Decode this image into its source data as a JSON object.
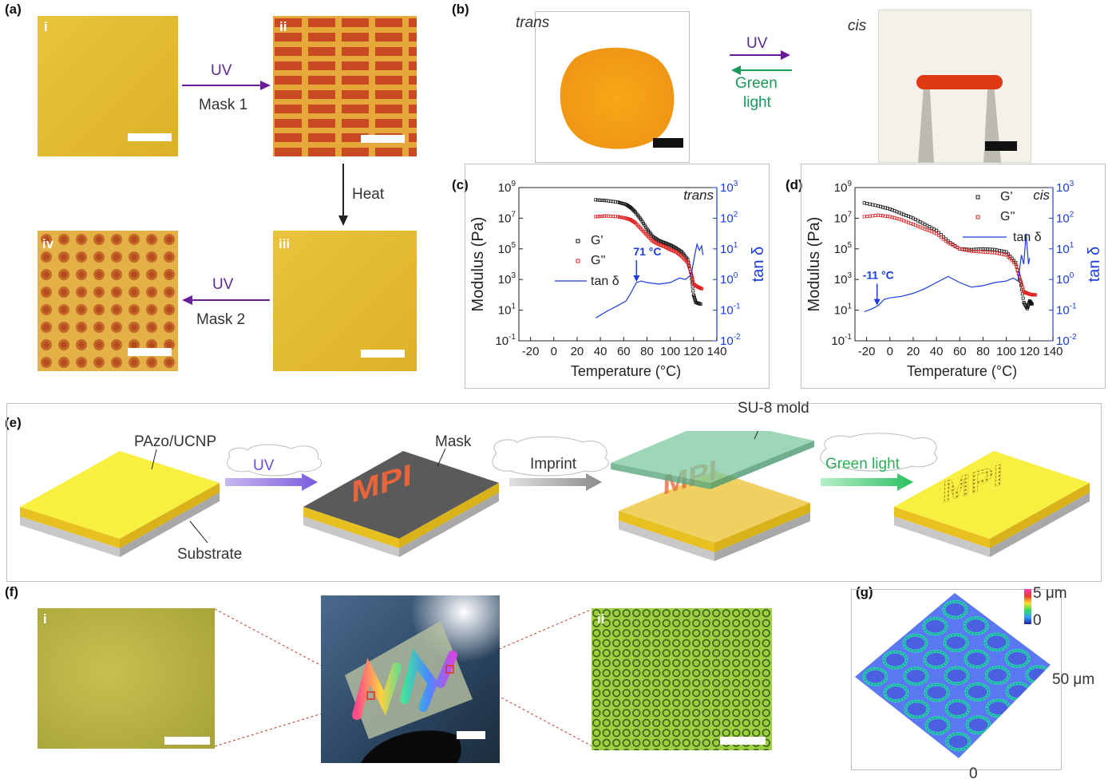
{
  "panel_a": {
    "label": "(a)",
    "tiles": [
      "i",
      "ii",
      "iii",
      "iv"
    ],
    "arrow1": {
      "top": "UV",
      "bottom": "Mask 1"
    },
    "arrow2": {
      "label": "Heat"
    },
    "arrow3": {
      "top": "UV",
      "bottom": "Mask 2"
    }
  },
  "panel_b": {
    "label": "(b)",
    "left_caption": "trans",
    "right_caption": "cis",
    "arrow_top": "UV",
    "arrow_bottom_line1": "Green",
    "arrow_bottom_line2": "light"
  },
  "panel_c": {
    "label": "(c)",
    "corner_text": "trans",
    "annotation": "71 °C",
    "legend": [
      "G'",
      "G''",
      "tan δ"
    ]
  },
  "panel_d": {
    "label": "(d)",
    "corner_text": "cis",
    "annotation": "-11 °C",
    "legend": [
      "G'",
      "G''",
      "tan δ"
    ]
  },
  "panel_e": {
    "label": "(e)",
    "pazo_label": "PAzo/UCNP",
    "substrate_label": "Substrate",
    "uv_label": "UV",
    "mask_label": "Mask",
    "mpi_text": "MPI",
    "imprint_label": "Imprint",
    "su8_label": "SU-8 mold",
    "green_label": "Green light"
  },
  "panel_f": {
    "label": "(f)",
    "tile_left": "i",
    "tile_right": "ii"
  },
  "panel_g": {
    "label": "(g)",
    "colorbar_top": "5 μm",
    "colorbar_bottom": "0",
    "axis_side": "50 μm",
    "axis_bottom": "0"
  },
  "colors": {
    "yellow_film": "#e8c030",
    "red_pattern": "#c8421c",
    "uv_arrow": "#6a1b9a",
    "green_arrow": "#1a9a5a",
    "g_prime": "#111111",
    "g_double_prime": "#e02020",
    "tan_delta": "#1a3ae0"
  },
  "chart_data": [
    {
      "type": "scatter",
      "panel": "c",
      "xlabel": "Temperature (°C)",
      "ylabel": "Modulus (Pa)",
      "y2label": "tan δ",
      "xticks": [
        "-20",
        "0",
        "20",
        "40",
        "60",
        "80",
        "100",
        "120",
        "140"
      ],
      "xlim": [
        -30,
        140
      ],
      "ylim_log10": [
        -1,
        9
      ],
      "yticks_exp": [
        -1,
        1,
        3,
        5,
        7,
        9
      ],
      "y2lim_log10": [
        -2,
        3
      ],
      "y2ticks_exp": [
        -2,
        -1,
        0,
        1,
        2,
        3
      ],
      "annotation_x": 71,
      "series": [
        {
          "name": "G'",
          "x": [
            36,
            45,
            55,
            62,
            66,
            70,
            75,
            80,
            85,
            90,
            95,
            100,
            105,
            110,
            115,
            118,
            120,
            122,
            126
          ],
          "log10_y": [
            8.2,
            8.15,
            8.05,
            7.9,
            7.7,
            7.4,
            6.9,
            6.3,
            5.8,
            5.55,
            5.4,
            5.25,
            5.05,
            4.8,
            4.3,
            3.3,
            2.0,
            1.5,
            1.4
          ]
        },
        {
          "name": "G''",
          "x": [
            36,
            45,
            55,
            62,
            66,
            70,
            75,
            80,
            85,
            90,
            95,
            100,
            105,
            110,
            115,
            118,
            120,
            124,
            127
          ],
          "log10_y": [
            7.1,
            7.15,
            7.1,
            7.0,
            6.9,
            6.7,
            6.3,
            5.9,
            5.5,
            5.3,
            5.15,
            4.95,
            4.8,
            4.5,
            4.1,
            3.4,
            2.7,
            2.5,
            2.4
          ]
        },
        {
          "name": "tan δ",
          "x": [
            36,
            45,
            55,
            62,
            66,
            71,
            75,
            80,
            90,
            100,
            108,
            113,
            118,
            121,
            123,
            125,
            127,
            128
          ],
          "log10_y": [
            -1.25,
            -1.05,
            -0.85,
            -0.7,
            -0.45,
            -0.1,
            -0.05,
            -0.1,
            -0.15,
            -0.1,
            0.05,
            0.0,
            0.15,
            0.8,
            1.15,
            0.95,
            1.1,
            0.8
          ]
        }
      ]
    },
    {
      "type": "scatter",
      "panel": "d",
      "xlabel": "Temperature (°C)",
      "ylabel": "Modulus (Pa)",
      "y2label": "tan δ",
      "xticks": [
        "-20",
        "0",
        "20",
        "40",
        "60",
        "80",
        "100",
        "120",
        "140"
      ],
      "xlim": [
        -30,
        140
      ],
      "ylim_log10": [
        -1,
        9
      ],
      "yticks_exp": [
        -1,
        1,
        3,
        5,
        7,
        9
      ],
      "y2lim_log10": [
        -2,
        3
      ],
      "y2ticks_exp": [
        -2,
        -1,
        0,
        1,
        2,
        3
      ],
      "annotation_x": -11,
      "series": [
        {
          "name": "G'",
          "x": [
            -22,
            -10,
            0,
            10,
            20,
            30,
            40,
            50,
            60,
            70,
            80,
            90,
            100,
            108,
            112,
            115,
            118,
            120,
            122
          ],
          "log10_y": [
            8.0,
            7.8,
            7.6,
            7.3,
            7.0,
            6.6,
            6.2,
            5.5,
            5.0,
            4.95,
            5.0,
            4.95,
            4.8,
            4.1,
            2.9,
            1.5,
            1.1,
            1.6,
            1.4
          ]
        },
        {
          "name": "G''",
          "x": [
            -22,
            -10,
            0,
            10,
            20,
            30,
            40,
            50,
            60,
            70,
            80,
            90,
            100,
            108,
            112,
            115,
            118,
            122,
            125
          ],
          "log10_y": [
            7.1,
            7.2,
            7.1,
            6.9,
            6.6,
            6.3,
            6.0,
            5.4,
            5.0,
            4.85,
            4.8,
            4.75,
            4.6,
            4.0,
            3.0,
            2.2,
            2.1,
            2.0,
            2.0
          ]
        },
        {
          "name": "tan δ",
          "x": [
            -22,
            -15,
            -10,
            -5,
            0,
            10,
            20,
            30,
            40,
            50,
            60,
            70,
            80,
            90,
            100,
            106,
            110,
            113,
            115,
            117,
            119,
            120
          ],
          "log10_y": [
            -1.05,
            -0.95,
            -0.85,
            -0.65,
            -0.6,
            -0.55,
            -0.45,
            -0.3,
            -0.1,
            0.1,
            -0.1,
            -0.25,
            -0.2,
            -0.1,
            -0.05,
            0.05,
            -0.05,
            0.8,
            0.5,
            1.5,
            0.5,
            0.7
          ]
        }
      ]
    }
  ]
}
